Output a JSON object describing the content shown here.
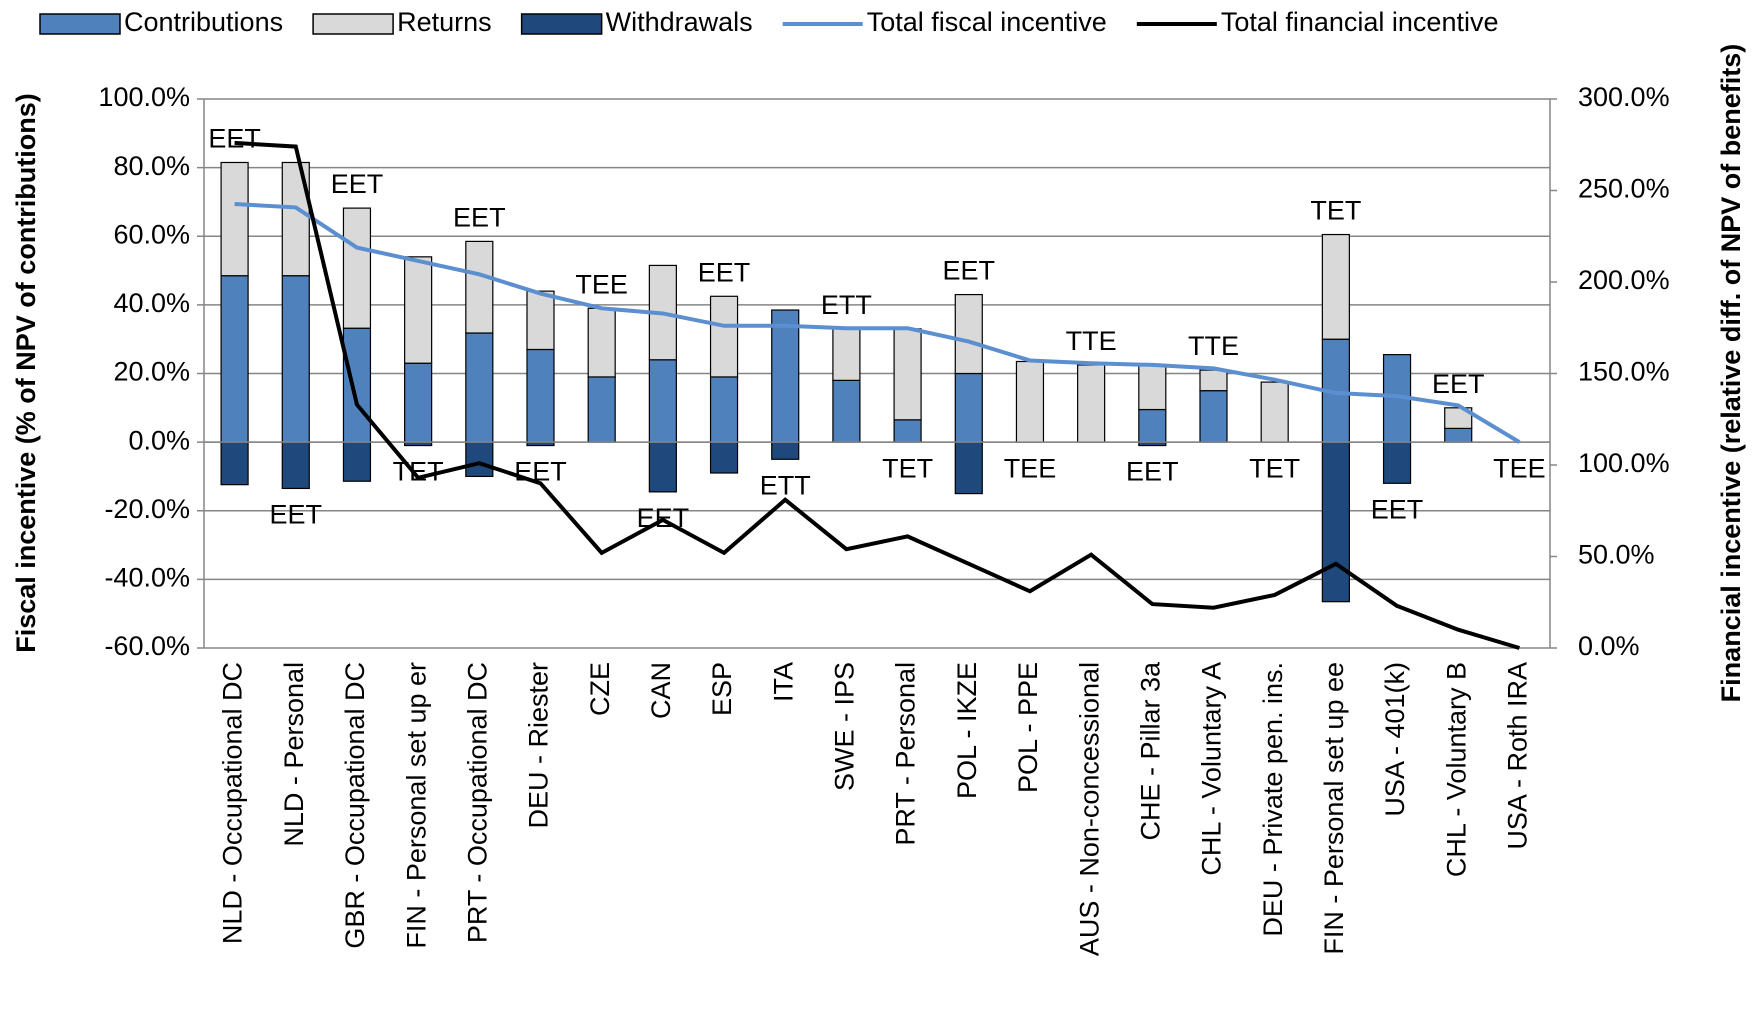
{
  "chart_data": {
    "type": "bar",
    "categories": [
      "NLD - Occupational DC",
      "NLD - Personal",
      "GBR - Occupational DC",
      "FIN - Personal set up er",
      "PRT - Occupational DC",
      "DEU - Riester",
      "CZE",
      "CAN",
      "ESP",
      "ITA",
      "SWE - IPS",
      "PRT - Personal",
      "POL - IKZE",
      "POL - PPE",
      "AUS - Non-concessional",
      "CHE - Pillar 3a",
      "CHL - Voluntary A",
      "DEU - Private pen. ins.",
      "FIN - Personal set up ee",
      "USA - 401(k)",
      "CHL - Voluntary B",
      "USA - Roth IRA"
    ],
    "series": [
      {
        "name": "Contributions",
        "type": "bar",
        "color": "#4f81bd",
        "values": [
          48.5,
          48.5,
          33.2,
          23,
          31.8,
          27,
          19,
          24,
          19,
          38.5,
          18,
          6.5,
          20,
          0,
          0,
          9.5,
          15,
          0,
          30,
          25.5,
          4,
          0
        ]
      },
      {
        "name": "Returns",
        "type": "bar",
        "color": "#d9d9d9",
        "values": [
          33,
          33,
          35,
          31,
          26.7,
          17,
          20,
          27.5,
          23.5,
          0,
          15,
          26.5,
          23,
          23.5,
          22.5,
          13,
          6,
          17.5,
          30.5,
          0,
          6,
          0
        ]
      },
      {
        "name": "Withdrawals",
        "type": "bar",
        "color": "#1f497d",
        "values": [
          -12.4,
          -13.5,
          -11.4,
          -1,
          -10,
          -1,
          0,
          -14.5,
          -9,
          -5,
          0,
          0,
          -15,
          0,
          0,
          -1,
          0,
          0,
          -46.5,
          -12,
          0,
          0
        ]
      },
      {
        "name": "Total fiscal incentive",
        "type": "line",
        "color": "#5b8fd0",
        "values": [
          69.4,
          68.4,
          56.7,
          52.8,
          48.9,
          43.3,
          39,
          37.5,
          33.9,
          33.9,
          33.2,
          33.2,
          29.3,
          23.8,
          23,
          22.5,
          21.5,
          18.2,
          14.3,
          13.4,
          10.7,
          0
        ]
      },
      {
        "name": "Total financial incentive",
        "type": "line",
        "axis": "y2",
        "color": "#000000",
        "values": [
          276,
          274,
          133,
          93,
          101,
          90,
          52,
          70,
          52,
          81,
          54,
          61,
          46,
          31,
          51,
          24,
          22,
          29,
          46,
          23,
          10,
          0
        ]
      }
    ],
    "regimes": [
      "EET",
      "EET",
      "EET",
      "TET",
      "EET",
      "EET",
      "TEE",
      "EET",
      "EET",
      "ETT",
      "ETT",
      "TET",
      "EET",
      "TEE",
      "TTE",
      "EET",
      "TTE",
      "TET",
      "TET",
      "EET",
      "EET",
      "TEE"
    ],
    "ylabel": "Fiscal incentive (% of NPV of contributions)",
    "y2label": "Financial incentive (relative diff. of NPV of benefits)",
    "ylim": [
      -60,
      100
    ],
    "yticks": [
      {
        "value": -60,
        "label": "-60.0%"
      },
      {
        "value": -40,
        "label": "-40.0%"
      },
      {
        "value": -20,
        "label": "-20.0%"
      },
      {
        "value": 0,
        "label": "0.0%"
      },
      {
        "value": 20,
        "label": "20.0%"
      },
      {
        "value": 40,
        "label": "40.0%"
      },
      {
        "value": 60,
        "label": "60.0%"
      },
      {
        "value": 80,
        "label": "80.0%"
      },
      {
        "value": 100,
        "label": "100.0%"
      }
    ],
    "y2lim": [
      0,
      300
    ],
    "y2ticks": [
      {
        "value": 0,
        "label": "0.0%"
      },
      {
        "value": 50,
        "label": "50.0%"
      },
      {
        "value": 100,
        "label": "100.0%"
      },
      {
        "value": 150,
        "label": "150.0%"
      },
      {
        "value": 200,
        "label": "200.0%"
      },
      {
        "value": 250,
        "label": "250.0%"
      },
      {
        "value": 300,
        "label": "300.0%"
      }
    ],
    "grid": true,
    "legend": "top"
  }
}
